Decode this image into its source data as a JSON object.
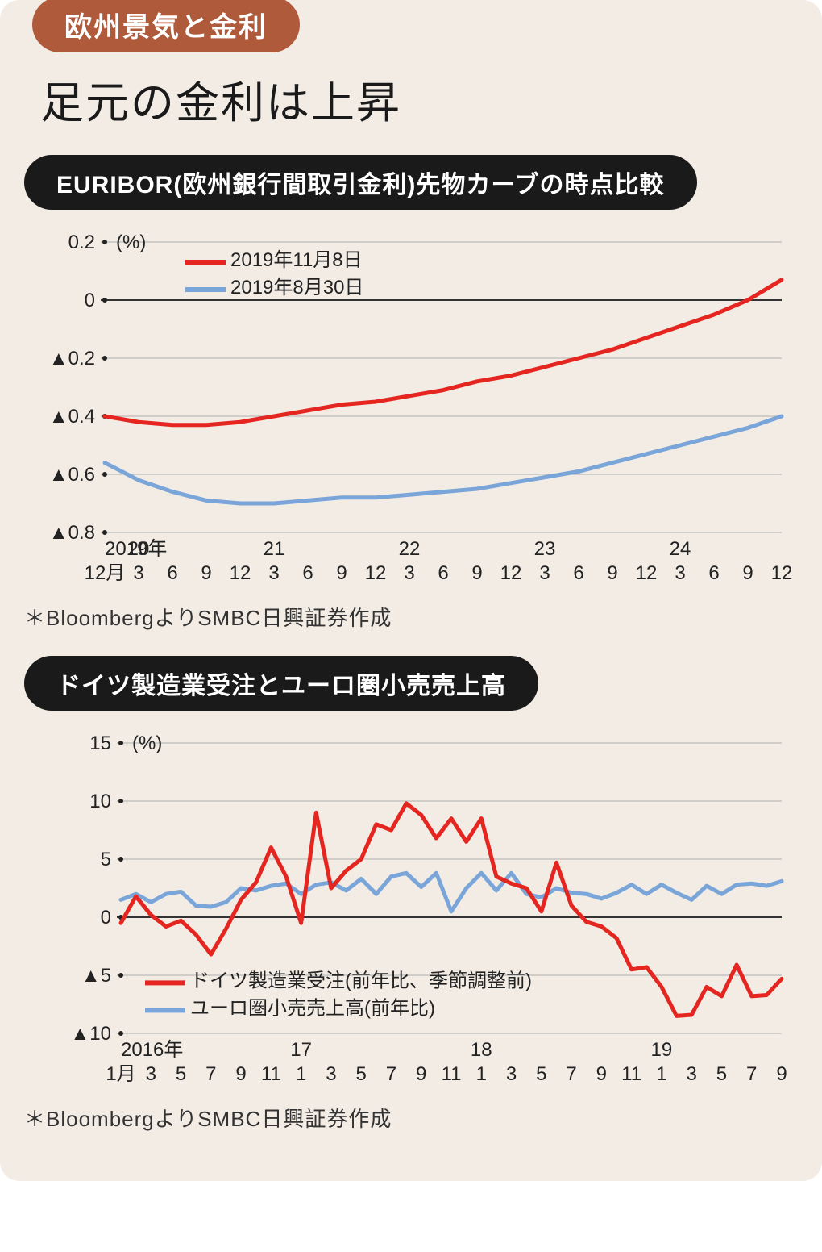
{
  "category_label": "欧州景気と金利",
  "main_title": "足元の金利は上昇",
  "colors": {
    "background": "#f2ece5",
    "category_pill": "#b05a3c",
    "chart_title_pill": "#1a1a1a",
    "text": "#222222",
    "series_red": "#e52620",
    "series_blue": "#7aa5d9",
    "gridline": "#b0b0b0",
    "zeroline": "#333333"
  },
  "chart1": {
    "title": "EURIBOR(欧州銀行間取引金利)先物カーブの時点比較",
    "type": "line",
    "unit_label": "(%)",
    "ylim": [
      -0.8,
      0.2
    ],
    "ytick_step": 0.2,
    "ytick_labels": [
      "0.2",
      "0",
      "▲0.2",
      "▲0.4",
      "▲0.6",
      "▲0.8"
    ],
    "ytick_values": [
      0.2,
      0,
      -0.2,
      -0.4,
      -0.6,
      -0.8
    ],
    "x_year_top": [
      "2019年",
      "20",
      "21",
      "22",
      "23",
      "24"
    ],
    "x_month_bottom": [
      "12月",
      "3",
      "6",
      "9",
      "12",
      "3",
      "6",
      "9",
      "12",
      "3",
      "6",
      "9",
      "12",
      "3",
      "6",
      "9",
      "12",
      "3",
      "6",
      "9",
      "12"
    ],
    "legend": [
      {
        "label": "2019年11月8日",
        "color": "#e52620"
      },
      {
        "label": "2019年8月30日",
        "color": "#7aa5d9"
      }
    ],
    "series_red": {
      "color": "#e52620",
      "values": [
        -0.4,
        -0.42,
        -0.43,
        -0.43,
        -0.42,
        -0.4,
        -0.38,
        -0.36,
        -0.35,
        -0.33,
        -0.31,
        -0.28,
        -0.26,
        -0.23,
        -0.2,
        -0.17,
        -0.13,
        -0.09,
        -0.05,
        0.0,
        0.07
      ]
    },
    "series_blue": {
      "color": "#7aa5d9",
      "values": [
        -0.56,
        -0.62,
        -0.66,
        -0.69,
        -0.7,
        -0.7,
        -0.69,
        -0.68,
        -0.68,
        -0.67,
        -0.66,
        -0.65,
        -0.63,
        -0.61,
        -0.59,
        -0.56,
        -0.53,
        -0.5,
        -0.47,
        -0.44,
        -0.4
      ]
    },
    "line_width": 5,
    "source": "＊BloombergよりSMBC日興証券作成"
  },
  "chart2": {
    "title": "ドイツ製造業受注とユーロ圏小売売上高",
    "type": "line",
    "unit_label": "(%)",
    "ylim": [
      -10,
      15
    ],
    "ytick_step": 5,
    "ytick_labels": [
      "15",
      "10",
      "5",
      "0",
      "▲5",
      "▲10"
    ],
    "ytick_values": [
      15,
      10,
      5,
      0,
      -5,
      -10
    ],
    "x_year_top": [
      "2016年",
      "17",
      "18",
      "19"
    ],
    "x_month_bottom": [
      "1月",
      "3",
      "5",
      "7",
      "9",
      "11",
      "1",
      "3",
      "5",
      "7",
      "9",
      "11",
      "1",
      "3",
      "5",
      "7",
      "9",
      "11",
      "1",
      "3",
      "5",
      "7",
      "9"
    ],
    "legend": [
      {
        "label": "ドイツ製造業受注(前年比、季節調整前)",
        "color": "#e52620"
      },
      {
        "label": "ユーロ圏小売売上高(前年比)",
        "color": "#7aa5d9"
      }
    ],
    "series_red": {
      "color": "#e52620",
      "values": [
        -0.5,
        1.8,
        0.2,
        -0.8,
        -0.3,
        -1.5,
        -3.2,
        -1.0,
        1.5,
        3.0,
        6.0,
        3.5,
        -0.5,
        9.0,
        2.5,
        4.0,
        5.0,
        8.0,
        7.5,
        9.8,
        8.8,
        6.8,
        8.5,
        6.5,
        8.5,
        3.5,
        2.9,
        2.5,
        0.5,
        4.7,
        1.0,
        -0.4,
        -0.8,
        -1.8,
        -4.5,
        -4.3,
        -6.0,
        -8.5,
        -8.4,
        -6.0,
        -6.8,
        -4.1,
        -6.8,
        -6.7,
        -5.3
      ]
    },
    "series_blue": {
      "color": "#7aa5d9",
      "values": [
        1.5,
        2.0,
        1.3,
        2.0,
        2.2,
        1.0,
        0.9,
        1.3,
        2.5,
        2.3,
        2.7,
        2.9,
        2.0,
        2.8,
        3.0,
        2.3,
        3.3,
        2.0,
        3.5,
        3.8,
        2.6,
        3.8,
        0.5,
        2.5,
        3.8,
        2.3,
        3.8,
        2.0,
        1.7,
        2.5,
        2.1,
        2.0,
        1.6,
        2.1,
        2.8,
        2.0,
        2.8,
        2.1,
        1.5,
        2.7,
        2.0,
        2.8,
        2.9,
        2.7,
        3.1
      ]
    },
    "line_width": 5,
    "source": "＊BloombergよりSMBC日興証券作成"
  }
}
